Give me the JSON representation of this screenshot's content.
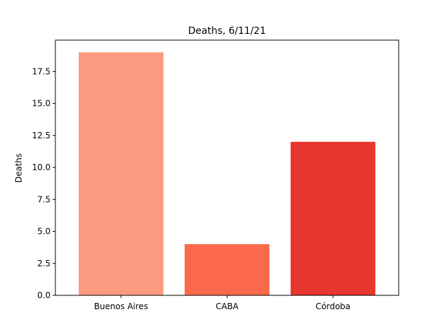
{
  "chart_data": {
    "type": "bar",
    "title": "Deaths, 6/11/21",
    "xlabel": "",
    "ylabel": "Deaths",
    "categories": [
      "Buenos Aires",
      "CABA",
      "Córdoba"
    ],
    "values": [
      19,
      4,
      12
    ],
    "colors": [
      "#fb9a7f",
      "#fb694a",
      "#e8352d"
    ],
    "ylim": [
      0,
      19.95
    ],
    "yticks": [
      0.0,
      2.5,
      5.0,
      7.5,
      10.0,
      12.5,
      15.0,
      17.5
    ],
    "ytick_labels": [
      "0.0",
      "2.5",
      "5.0",
      "7.5",
      "10.0",
      "12.5",
      "15.0",
      "17.5"
    ],
    "grid": false,
    "legend": "none"
  }
}
